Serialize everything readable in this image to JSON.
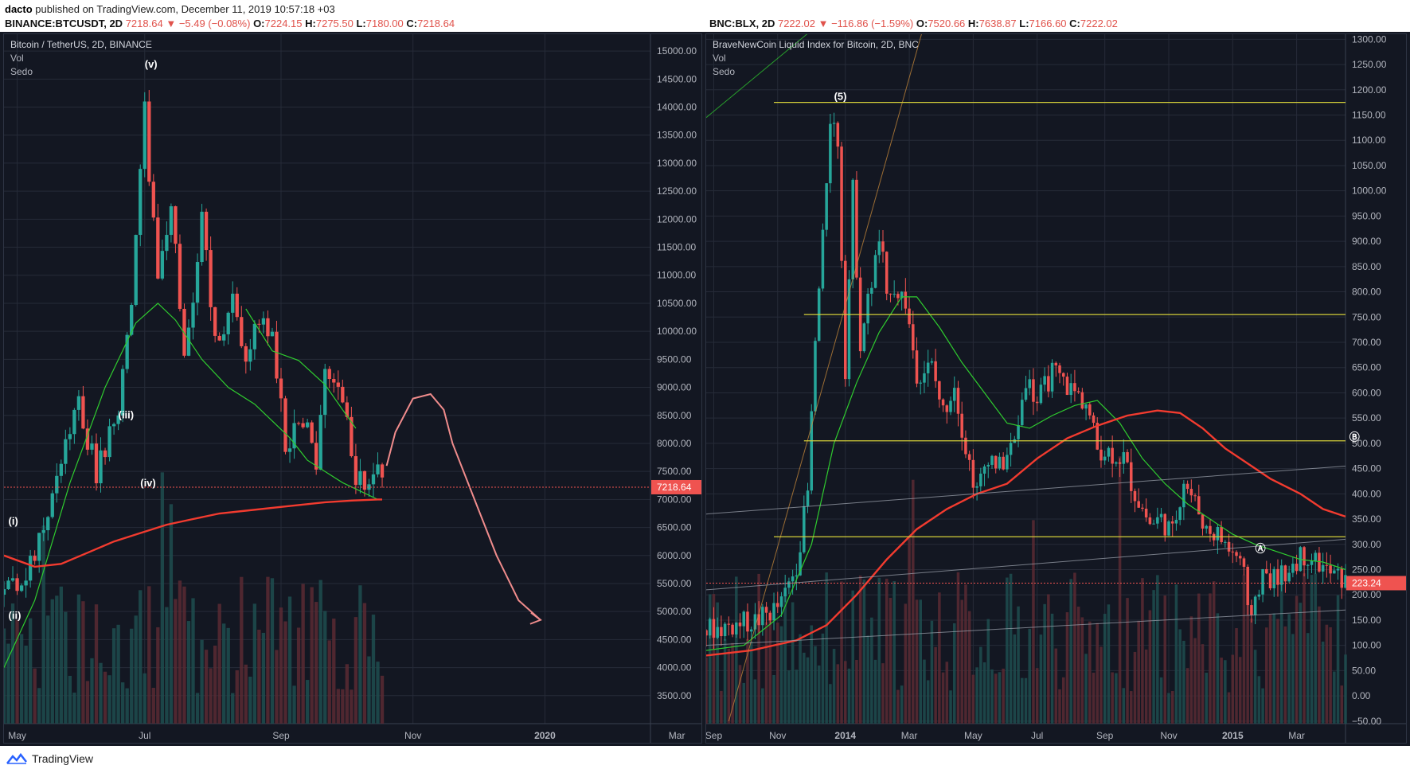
{
  "header": {
    "author": "dacto",
    "published": "published on TradingView.com, December 11, 2019 10:57:18 +03"
  },
  "left_info": {
    "symbol": "BINANCE:BTCUSDT, 2D",
    "last": "7218.64",
    "change": "−5.49 (−0.08%)",
    "o_label": "O:",
    "o": "7224.15",
    "h_label": "H:",
    "h": "7275.50",
    "l_label": "L:",
    "l": "7180.00",
    "c_label": "C:",
    "c": "7218.64"
  },
  "right_info": {
    "symbol": "BNC:BLX, 2D",
    "last": "7222.02",
    "change": "−116.86 (−1.59%)",
    "o_label": "O:",
    "o": "7520.66",
    "h_label": "H:",
    "h": "7638.87",
    "l_label": "L:",
    "l": "7166.60",
    "c_label": "C:",
    "c": "7222.02"
  },
  "footer": {
    "brand": "TradingView"
  },
  "colors": {
    "up": "#26a69a",
    "down": "#ef5350",
    "ma_green": "#2fcc2f",
    "ma_red": "#f23b2f",
    "hline": "#d4cf3a",
    "bg": "#131722",
    "grid": "#262b38"
  },
  "chart_data": [
    {
      "type": "candlestick",
      "title": "Bitcoin / TetherUS, 2D, BINANCE",
      "indicators": [
        "Vol",
        "Sedo"
      ],
      "ylim": [
        3000,
        15300
      ],
      "y_ticks": [
        "15000.00",
        "14500.00",
        "14000.00",
        "13500.00",
        "13000.00",
        "12500.00",
        "12000.00",
        "11500.00",
        "11000.00",
        "10500.00",
        "10000.00",
        "9500.00",
        "9000.00",
        "8500.00",
        "8000.00",
        "7500.00",
        "7000.00",
        "6500.00",
        "6000.00",
        "5500.00",
        "5000.00",
        "4500.00",
        "4000.00",
        "3500.00"
      ],
      "x_ticks": [
        "May",
        "Jul",
        "Sep",
        "Nov",
        "2020",
        "Mar",
        "May",
        "Jul"
      ],
      "x_bold": [
        "2020"
      ],
      "last_price": "7218.64",
      "last_value": 7218.64,
      "wave_labels": [
        {
          "text": "(v)",
          "at": [
            7,
            14700
          ]
        },
        {
          "text": "(iii)",
          "at": [
            1,
            8450
          ]
        },
        {
          "text": "(iv)",
          "at": [
            6,
            7230
          ]
        },
        {
          "text": "(i)",
          "at": [
            -24,
            6550
          ]
        },
        {
          "text": "(ii)",
          "at": [
            -24,
            4870
          ]
        }
      ],
      "anchors": [
        [
          -25,
          5300
        ],
        [
          -18,
          5900
        ],
        [
          -12,
          7700
        ],
        [
          -8,
          8650
        ],
        [
          -4,
          7500
        ],
        [
          1,
          8650
        ],
        [
          4,
          10500
        ],
        [
          7,
          13900
        ],
        [
          10,
          10800
        ],
        [
          13,
          12400
        ],
        [
          16,
          9400
        ],
        [
          20,
          12000
        ],
        [
          23,
          9800
        ],
        [
          27,
          10500
        ],
        [
          30,
          9600
        ],
        [
          33,
          10300
        ],
        [
          36,
          9900
        ],
        [
          39,
          8000
        ],
        [
          43,
          8500
        ],
        [
          46,
          7600
        ],
        [
          48,
          9500
        ],
        [
          52,
          8800
        ],
        [
          55,
          7400
        ],
        [
          58,
          7200
        ],
        [
          60,
          7550
        ],
        [
          61,
          7218
        ]
      ],
      "ma_green": [
        [
          -25,
          4000
        ],
        [
          -18,
          5200
        ],
        [
          -10,
          7300
        ],
        [
          -2,
          9000
        ],
        [
          5,
          10150
        ],
        [
          10,
          10500
        ],
        [
          14,
          10200
        ],
        [
          20,
          9500
        ],
        [
          26,
          9000
        ],
        [
          32,
          8700
        ],
        [
          36,
          8400
        ],
        [
          40,
          8100
        ],
        [
          44,
          7700
        ],
        [
          48,
          7500
        ],
        [
          52,
          7300
        ],
        [
          56,
          7150
        ],
        [
          60,
          7000
        ],
        [
          61,
          7000
        ]
      ],
      "ma_green2": [
        [
          30,
          10400
        ],
        [
          36,
          9650
        ],
        [
          42,
          9480
        ],
        [
          48,
          9050
        ],
        [
          52,
          8600
        ],
        [
          55,
          8270
        ]
      ],
      "ma_red": [
        [
          -25,
          6000
        ],
        [
          -18,
          5800
        ],
        [
          -12,
          5850
        ],
        [
          -6,
          6050
        ],
        [
          0,
          6250
        ],
        [
          6,
          6400
        ],
        [
          12,
          6550
        ],
        [
          18,
          6650
        ],
        [
          24,
          6750
        ],
        [
          30,
          6800
        ],
        [
          36,
          6850
        ],
        [
          42,
          6900
        ],
        [
          48,
          6950
        ],
        [
          54,
          6980
        ],
        [
          60,
          7000
        ],
        [
          61,
          7000
        ]
      ],
      "projection": {
        "points": [
          [
            62,
            7600
          ],
          [
            64,
            8200
          ],
          [
            68,
            8800
          ],
          [
            72,
            8880
          ],
          [
            75,
            8600
          ],
          [
            77,
            8000
          ],
          [
            82,
            7000
          ],
          [
            87,
            6000
          ],
          [
            92,
            5200
          ],
          [
            97,
            4850
          ]
        ]
      },
      "x_range": [
        -25,
        122
      ],
      "x_tick_positions": [
        -22,
        7,
        38,
        68,
        98,
        128,
        158,
        188
      ]
    },
    {
      "type": "candlestick",
      "title": "BraveNewCoin Liquid Index for Bitcoin, 2D, BNC",
      "indicators": [
        "Vol",
        "Sedo"
      ],
      "ylim": [
        -55,
        1310
      ],
      "y_ticks": [
        "1300.00",
        "1250.00",
        "1200.00",
        "1150.00",
        "1100.00",
        "1050.00",
        "1000.00",
        "950.00",
        "900.00",
        "850.00",
        "800.00",
        "750.00",
        "700.00",
        "650.00",
        "600.00",
        "550.00",
        "500.00",
        "450.00",
        "400.00",
        "350.00",
        "300.00",
        "250.00",
        "200.00",
        "150.00",
        "100.00",
        "50.00",
        "0.00",
        "−50.00"
      ],
      "x_ticks": [
        "Sep",
        "Nov",
        "2014",
        "Mar",
        "May",
        "Jul",
        "Sep",
        "Nov",
        "2015",
        "Mar"
      ],
      "x_bold": [
        "2014",
        "2015"
      ],
      "last_price": "223.24",
      "last_value": 223.24,
      "h_levels": [
        1175,
        755,
        505,
        315
      ],
      "wave_labels": [
        {
          "text": "(5)",
          "at": [
            34,
            1180
          ]
        },
        {
          "text": "Ⓐ",
          "at": [
            146,
            285
          ]
        },
        {
          "text": "Ⓑ",
          "at": [
            171,
            505
          ]
        },
        {
          "text": "Ⓒ",
          "at": [
            200,
            150
          ]
        }
      ],
      "anchors": [
        [
          0,
          130
        ],
        [
          8,
          140
        ],
        [
          14,
          150
        ],
        [
          20,
          180
        ],
        [
          24,
          260
        ],
        [
          27,
          400
        ],
        [
          29,
          700
        ],
        [
          31,
          900
        ],
        [
          33,
          1150
        ],
        [
          35,
          1100
        ],
        [
          37,
          650
        ],
        [
          39,
          1000
        ],
        [
          41,
          700
        ],
        [
          44,
          820
        ],
        [
          46,
          900
        ],
        [
          48,
          820
        ],
        [
          50,
          810
        ],
        [
          53,
          780
        ],
        [
          56,
          640
        ],
        [
          60,
          650
        ],
        [
          63,
          560
        ],
        [
          66,
          620
        ],
        [
          69,
          490
        ],
        [
          72,
          400
        ],
        [
          75,
          480
        ],
        [
          78,
          450
        ],
        [
          82,
          500
        ],
        [
          85,
          630
        ],
        [
          88,
          580
        ],
        [
          92,
          640
        ],
        [
          95,
          620
        ],
        [
          98,
          600
        ],
        [
          101,
          580
        ],
        [
          104,
          490
        ],
        [
          108,
          480
        ],
        [
          111,
          470
        ],
        [
          114,
          400
        ],
        [
          118,
          340
        ],
        [
          121,
          350
        ],
        [
          124,
          320
        ],
        [
          127,
          430
        ],
        [
          130,
          380
        ],
        [
          133,
          330
        ],
        [
          136,
          320
        ],
        [
          139,
          290
        ],
        [
          142,
          270
        ],
        [
          145,
          170
        ],
        [
          148,
          240
        ],
        [
          151,
          230
        ],
        [
          154,
          250
        ],
        [
          157,
          270
        ],
        [
          160,
          280
        ],
        [
          163,
          260
        ],
        [
          166,
          240
        ],
        [
          169,
          230
        ],
        [
          170,
          223
        ]
      ],
      "ma_green": [
        [
          0,
          90
        ],
        [
          10,
          100
        ],
        [
          20,
          160
        ],
        [
          28,
          300
        ],
        [
          34,
          500
        ],
        [
          40,
          620
        ],
        [
          46,
          720
        ],
        [
          52,
          790
        ],
        [
          56,
          790
        ],
        [
          62,
          730
        ],
        [
          68,
          660
        ],
        [
          74,
          600
        ],
        [
          80,
          540
        ],
        [
          86,
          530
        ],
        [
          92,
          555
        ],
        [
          98,
          575
        ],
        [
          104,
          585
        ],
        [
          110,
          540
        ],
        [
          116,
          470
        ],
        [
          122,
          420
        ],
        [
          128,
          380
        ],
        [
          134,
          350
        ],
        [
          140,
          320
        ],
        [
          146,
          300
        ],
        [
          152,
          285
        ],
        [
          158,
          270
        ],
        [
          164,
          265
        ],
        [
          170,
          250
        ]
      ],
      "ma_red": [
        [
          0,
          80
        ],
        [
          12,
          90
        ],
        [
          24,
          110
        ],
        [
          32,
          140
        ],
        [
          40,
          200
        ],
        [
          48,
          270
        ],
        [
          56,
          330
        ],
        [
          64,
          370
        ],
        [
          72,
          400
        ],
        [
          80,
          420
        ],
        [
          88,
          470
        ],
        [
          96,
          510
        ],
        [
          104,
          535
        ],
        [
          112,
          555
        ],
        [
          120,
          565
        ],
        [
          126,
          560
        ],
        [
          132,
          530
        ],
        [
          138,
          490
        ],
        [
          144,
          460
        ],
        [
          150,
          430
        ],
        [
          158,
          400
        ],
        [
          164,
          370
        ],
        [
          170,
          355
        ]
      ],
      "trend_lines": [
        {
          "from": [
            0,
            1145
          ],
          "to": [
            30,
            1330
          ],
          "color": "#2fcc2f"
        },
        {
          "from": [
            6,
            -50
          ],
          "to": [
            58,
            1330
          ],
          "color": "#c98a3a"
        },
        {
          "from": [
            0,
            210
          ],
          "to": [
            170,
            310
          ],
          "color": "#9aa0ab"
        },
        {
          "from": [
            0,
            360
          ],
          "to": [
            170,
            455
          ],
          "color": "#9aa0ab"
        },
        {
          "from": [
            0,
            100
          ],
          "to": [
            170,
            170
          ],
          "color": "#9aa0ab"
        }
      ],
      "x_range": [
        0,
        170
      ],
      "x_tick_positions": [
        2,
        19,
        37,
        54,
        71,
        88,
        106,
        123,
        140,
        157
      ]
    }
  ]
}
